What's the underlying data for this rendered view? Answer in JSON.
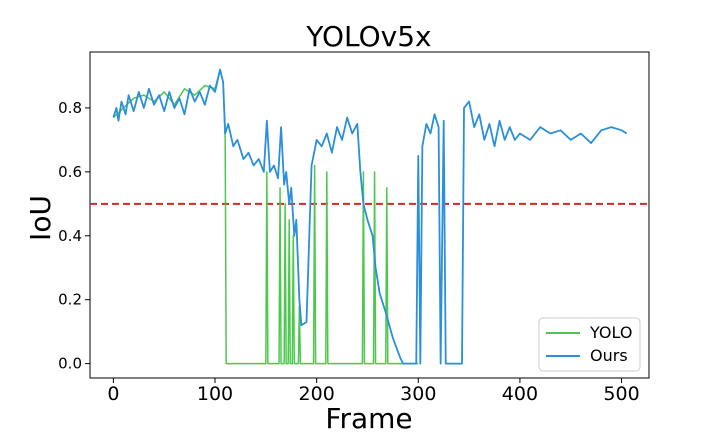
{
  "chart_data": {
    "type": "line",
    "title": "YOLOv5x",
    "xlabel": "Frame",
    "ylabel": "IoU",
    "xlim": [
      -23,
      527
    ],
    "ylim": [
      -0.045,
      0.975
    ],
    "xticks": [
      0,
      100,
      200,
      300,
      400,
      500
    ],
    "yticks": [
      0.0,
      0.2,
      0.4,
      0.6,
      0.8
    ],
    "x_tick_labels": [
      "0",
      "100",
      "200",
      "300",
      "400",
      "500"
    ],
    "y_tick_labels": [
      "0.0",
      "0.2",
      "0.4",
      "0.6",
      "0.8"
    ],
    "grid": false,
    "legend_position": "bottom-right",
    "threshold": {
      "y": 0.5,
      "color": "#d62728",
      "style": "dashed"
    },
    "series": [
      {
        "name": "YOLO",
        "color": "#4cc94c",
        "points": [
          [
            0,
            0.77
          ],
          [
            10,
            0.8
          ],
          [
            20,
            0.83
          ],
          [
            30,
            0.84
          ],
          [
            40,
            0.82
          ],
          [
            50,
            0.85
          ],
          [
            60,
            0.81
          ],
          [
            70,
            0.86
          ],
          [
            80,
            0.84
          ],
          [
            90,
            0.87
          ],
          [
            100,
            0.86
          ],
          [
            105,
            0.92
          ],
          [
            108,
            0.88
          ],
          [
            110,
            0.7
          ],
          [
            111,
            0.0
          ],
          [
            150,
            0.0
          ],
          [
            151,
            0.6
          ],
          [
            152,
            0.0
          ],
          [
            163,
            0.0
          ],
          [
            164,
            0.55
          ],
          [
            165,
            0.0
          ],
          [
            168,
            0.0
          ],
          [
            169,
            0.5
          ],
          [
            170,
            0.0
          ],
          [
            172,
            0.0
          ],
          [
            173,
            0.45
          ],
          [
            174,
            0.0
          ],
          [
            176,
            0.0
          ],
          [
            177,
            0.4
          ],
          [
            178,
            0.0
          ],
          [
            182,
            0.0
          ],
          [
            183,
            0.18
          ],
          [
            184,
            0.0
          ],
          [
            197,
            0.0
          ],
          [
            198,
            0.62
          ],
          [
            199,
            0.0
          ],
          [
            209,
            0.0
          ],
          [
            210,
            0.6
          ],
          [
            211,
            0.0
          ],
          [
            245,
            0.0
          ],
          [
            246,
            0.6
          ],
          [
            247,
            0.0
          ],
          [
            256,
            0.0
          ],
          [
            257,
            0.6
          ],
          [
            258,
            0.0
          ],
          [
            268,
            0.0
          ],
          [
            269,
            0.55
          ],
          [
            270,
            0.0
          ],
          [
            300,
            0.0
          ]
        ]
      },
      {
        "name": "Ours",
        "color": "#2b8fd9",
        "points": [
          [
            0,
            0.77
          ],
          [
            3,
            0.8
          ],
          [
            5,
            0.76
          ],
          [
            8,
            0.82
          ],
          [
            12,
            0.78
          ],
          [
            15,
            0.84
          ],
          [
            20,
            0.79
          ],
          [
            25,
            0.85
          ],
          [
            30,
            0.8
          ],
          [
            35,
            0.86
          ],
          [
            40,
            0.81
          ],
          [
            45,
            0.84
          ],
          [
            50,
            0.79
          ],
          [
            55,
            0.85
          ],
          [
            60,
            0.8
          ],
          [
            65,
            0.83
          ],
          [
            70,
            0.78
          ],
          [
            75,
            0.86
          ],
          [
            80,
            0.82
          ],
          [
            85,
            0.85
          ],
          [
            90,
            0.81
          ],
          [
            95,
            0.87
          ],
          [
            100,
            0.85
          ],
          [
            105,
            0.92
          ],
          [
            108,
            0.88
          ],
          [
            110,
            0.72
          ],
          [
            113,
            0.75
          ],
          [
            118,
            0.68
          ],
          [
            122,
            0.7
          ],
          [
            128,
            0.64
          ],
          [
            133,
            0.66
          ],
          [
            138,
            0.62
          ],
          [
            143,
            0.64
          ],
          [
            148,
            0.6
          ],
          [
            151,
            0.76
          ],
          [
            154,
            0.6
          ],
          [
            158,
            0.62
          ],
          [
            162,
            0.58
          ],
          [
            165,
            0.74
          ],
          [
            168,
            0.56
          ],
          [
            170,
            0.6
          ],
          [
            173,
            0.5
          ],
          [
            175,
            0.55
          ],
          [
            178,
            0.4
          ],
          [
            180,
            0.45
          ],
          [
            183,
            0.2
          ],
          [
            185,
            0.12
          ],
          [
            190,
            0.13
          ],
          [
            195,
            0.62
          ],
          [
            200,
            0.7
          ],
          [
            205,
            0.68
          ],
          [
            210,
            0.72
          ],
          [
            215,
            0.66
          ],
          [
            220,
            0.74
          ],
          [
            225,
            0.7
          ],
          [
            230,
            0.77
          ],
          [
            235,
            0.72
          ],
          [
            240,
            0.75
          ],
          [
            243,
            0.6
          ],
          [
            246,
            0.5
          ],
          [
            250,
            0.45
          ],
          [
            255,
            0.4
          ],
          [
            258,
            0.3
          ],
          [
            262,
            0.22
          ],
          [
            268,
            0.16
          ],
          [
            275,
            0.08
          ],
          [
            282,
            0.02
          ],
          [
            285,
            0.0
          ],
          [
            298,
            0.0
          ],
          [
            300,
            0.65
          ],
          [
            302,
            0.0
          ],
          [
            304,
            0.68
          ],
          [
            308,
            0.75
          ],
          [
            312,
            0.72
          ],
          [
            316,
            0.78
          ],
          [
            320,
            0.74
          ],
          [
            322,
            0.0
          ],
          [
            325,
            0.76
          ],
          [
            327,
            0.0
          ],
          [
            340,
            0.0
          ],
          [
            343,
            0.0
          ],
          [
            345,
            0.8
          ],
          [
            350,
            0.82
          ],
          [
            355,
            0.74
          ],
          [
            360,
            0.78
          ],
          [
            365,
            0.7
          ],
          [
            370,
            0.75
          ],
          [
            375,
            0.68
          ],
          [
            380,
            0.76
          ],
          [
            385,
            0.7
          ],
          [
            390,
            0.74
          ],
          [
            395,
            0.7
          ],
          [
            400,
            0.72
          ],
          [
            410,
            0.7
          ],
          [
            420,
            0.74
          ],
          [
            430,
            0.72
          ],
          [
            440,
            0.73
          ],
          [
            450,
            0.7
          ],
          [
            460,
            0.72
          ],
          [
            470,
            0.69
          ],
          [
            480,
            0.73
          ],
          [
            490,
            0.74
          ],
          [
            500,
            0.73
          ],
          [
            505,
            0.72
          ]
        ]
      }
    ]
  }
}
